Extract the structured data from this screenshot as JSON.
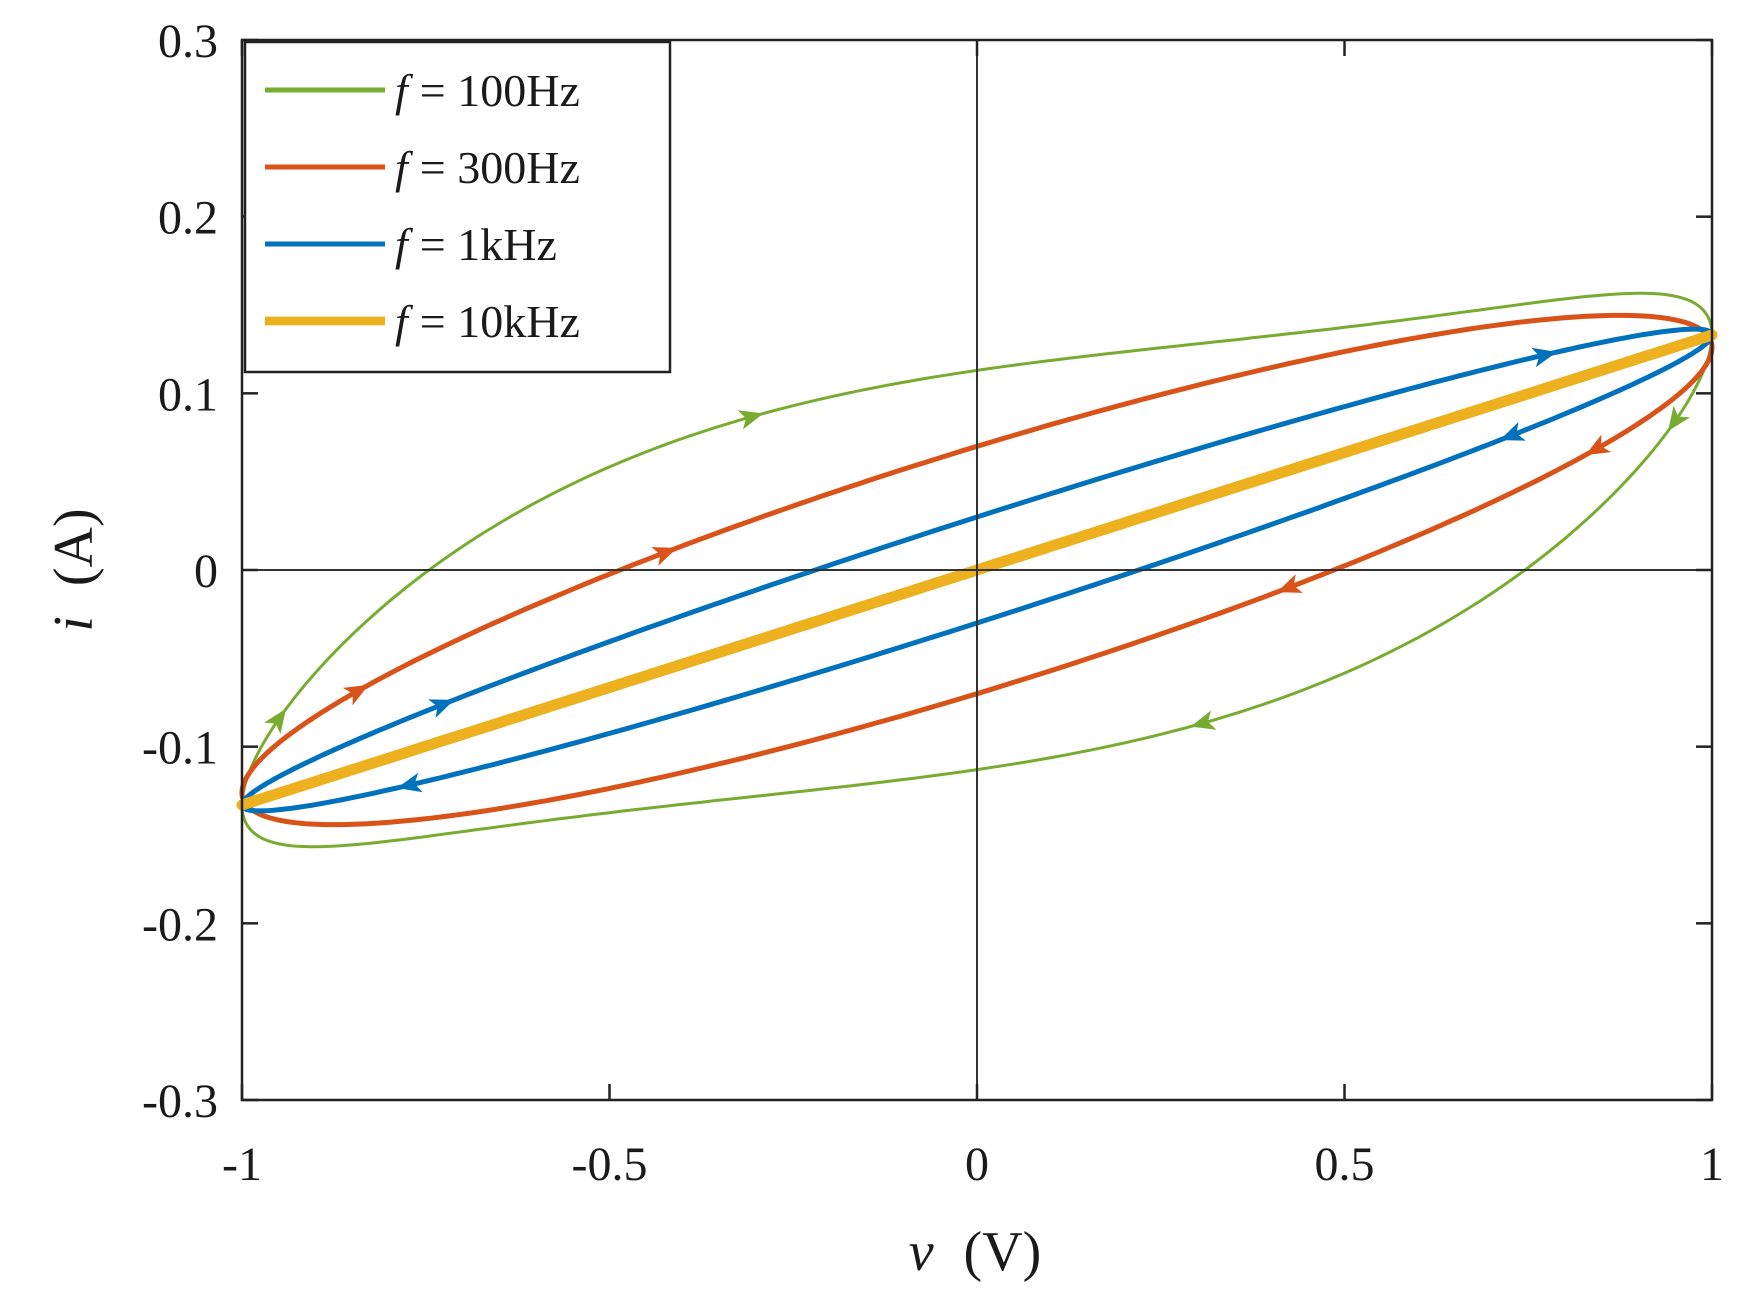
{
  "chart_data": {
    "type": "line",
    "title": "",
    "xlabel": {
      "var": "v",
      "unit": "(V)"
    },
    "ylabel": {
      "var": "i",
      "unit": "(A)"
    },
    "xlim": [
      -1,
      1
    ],
    "ylim": [
      -0.3,
      0.3
    ],
    "xticks": [
      -1,
      -0.5,
      0,
      0.5,
      1
    ],
    "yticks": [
      -0.3,
      -0.2,
      -0.1,
      0,
      0.1,
      0.2,
      0.3
    ],
    "xtick_labels": [
      "-1",
      "-0.5",
      "0",
      "0.5",
      "1"
    ],
    "ytick_labels": [
      "-0.3",
      "-0.2",
      "-0.1",
      "0",
      "0.1",
      "0.2",
      "0.3"
    ],
    "grid": false,
    "zero_lines": true,
    "legend_position": "top-left",
    "series": [
      {
        "name": "f = 100Hz",
        "legend_prefix": "f",
        "legend_suffix": "= 100Hz",
        "color": "#77ac30",
        "slope": 0.133,
        "asymmetry": 0.072,
        "hysteresis": 0.113,
        "width": "thin",
        "arrows": [
          0.05,
          0.2,
          0.55,
          0.7
        ]
      },
      {
        "name": "f = 300Hz",
        "legend_prefix": "f",
        "legend_suffix": "= 300Hz",
        "color": "#d95319",
        "slope": 0.126,
        "asymmetry": 0.0,
        "hysteresis": 0.07,
        "width": "medium",
        "arrows": [
          0.09,
          0.18,
          0.59,
          0.68
        ]
      },
      {
        "name": "f = 1kHz",
        "legend_prefix": "f",
        "legend_suffix": "= 1kHz",
        "color": "#0072bd",
        "slope": 0.133,
        "asymmetry": 0.0,
        "hysteresis": 0.03,
        "width": "medium",
        "arrows": [
          0.12,
          0.39,
          0.62,
          0.89
        ]
      },
      {
        "name": "f = 10kHz",
        "legend_prefix": "f",
        "legend_suffix": "= 10kHz",
        "color": "#edb120",
        "slope": 0.133,
        "asymmetry": 0.0,
        "hysteresis": 0.0,
        "width": "thick",
        "arrows": []
      }
    ]
  }
}
